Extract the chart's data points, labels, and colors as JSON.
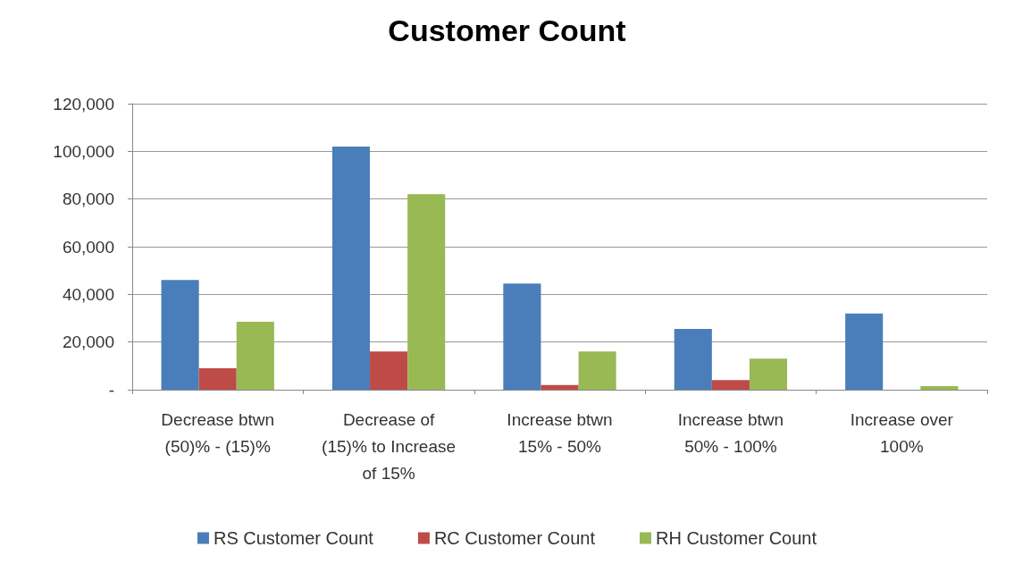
{
  "chart_data": {
    "type": "bar",
    "title": "Customer Count",
    "categories": [
      "Decrease btwn\n(50)% - (15)%",
      "Decrease of\n(15)% to Increase\nof 15%",
      "Increase btwn\n15% - 50%",
      "Increase btwn\n50% - 100%",
      "Increase over\n100%"
    ],
    "series": [
      {
        "name": "RS Customer Count",
        "color": "#4a7ebb",
        "values": [
          46000,
          102000,
          44500,
          25500,
          32000
        ]
      },
      {
        "name": "RC Customer Count",
        "color": "#be4b48",
        "values": [
          9000,
          16000,
          2000,
          4000,
          0
        ]
      },
      {
        "name": "RH Customer Count",
        "color": "#98b954",
        "values": [
          28500,
          82000,
          16000,
          13000,
          1500
        ]
      }
    ],
    "ylim": [
      0,
      120000
    ],
    "yticks": [
      {
        "value": 0,
        "label": "-"
      },
      {
        "value": 20000,
        "label": "20,000"
      },
      {
        "value": 40000,
        "label": "40,000"
      },
      {
        "value": 60000,
        "label": "60,000"
      },
      {
        "value": 80000,
        "label": "80,000"
      },
      {
        "value": 100000,
        "label": "100,000"
      },
      {
        "value": 120000,
        "label": "120,000"
      }
    ],
    "grid": "y",
    "legend": "bottom"
  }
}
